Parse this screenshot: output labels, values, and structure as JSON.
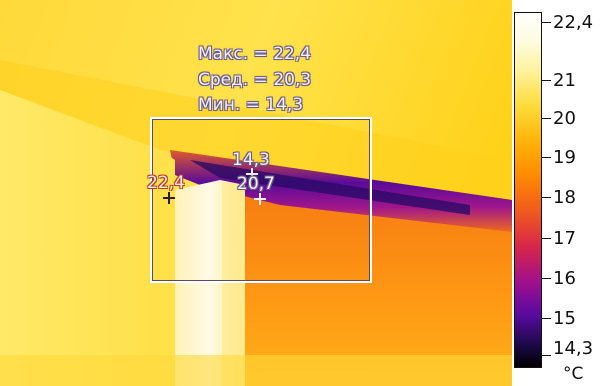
{
  "image": {
    "description_colors": {
      "wall_hot": "#ffe14a",
      "wall_warm": "#ffcc22",
      "door_white": "#fff8d8",
      "cold_edge": "#4a0a8a",
      "floor_orange": "#f58a10"
    }
  },
  "stats": {
    "max_label": "Макс. = 22,4",
    "avg_label": "Сред. = 20,3",
    "min_label": "Мин. = 14,3"
  },
  "spots": {
    "cold_value": "14,3",
    "hot_value": "22,4",
    "center_value": "20,7"
  },
  "scale": {
    "top_label": "22,4",
    "labels": [
      "21",
      "20",
      "19",
      "18",
      "17",
      "16",
      "15"
    ],
    "bottom_label": "14,3",
    "unit": "°C"
  }
}
